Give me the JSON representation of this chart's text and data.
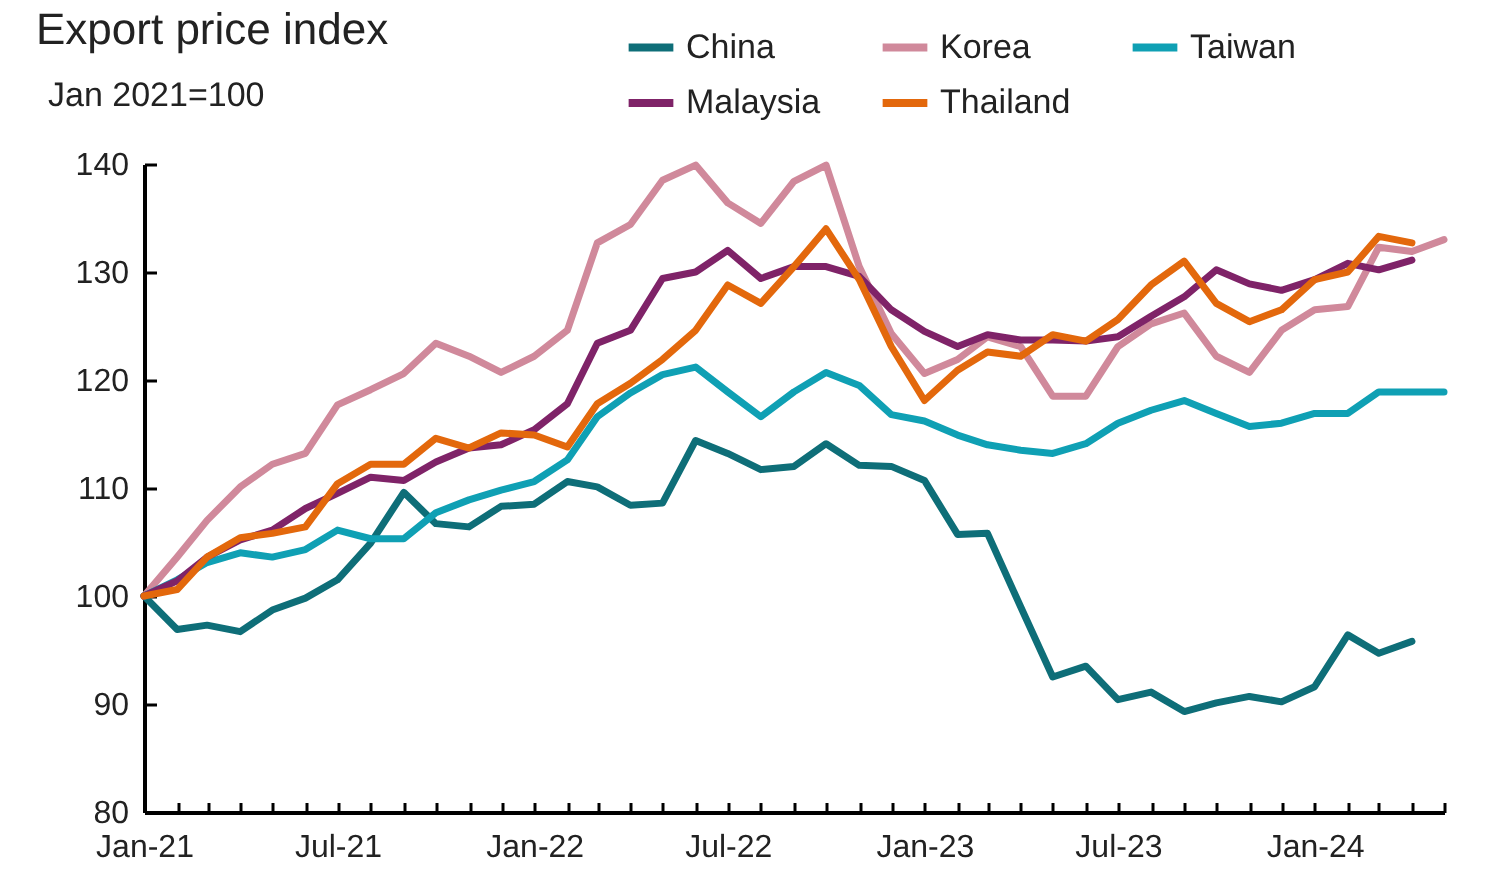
{
  "chart_data": {
    "type": "line",
    "title": "Export price index",
    "subtitle": "Jan 2021=100",
    "x": [
      "2021-01",
      "2021-02",
      "2021-03",
      "2021-04",
      "2021-05",
      "2021-06",
      "2021-07",
      "2021-08",
      "2021-09",
      "2021-10",
      "2021-11",
      "2021-12",
      "2022-01",
      "2022-02",
      "2022-03",
      "2022-04",
      "2022-05",
      "2022-06",
      "2022-07",
      "2022-08",
      "2022-09",
      "2022-10",
      "2022-11",
      "2022-12",
      "2023-01",
      "2023-02",
      "2023-03",
      "2023-04",
      "2023-05",
      "2023-06",
      "2023-07",
      "2023-08",
      "2023-09",
      "2023-10",
      "2023-11",
      "2023-12",
      "2024-01",
      "2024-02",
      "2024-03",
      "2024-04",
      "2024-05"
    ],
    "series": [
      {
        "name": "China",
        "color": "#0e6e78",
        "values": [
          100,
          96.9,
          97.3,
          96.7,
          98.7,
          99.8,
          101.5,
          104.9,
          109.6,
          106.7,
          106.4,
          108.3,
          108.5,
          110.6,
          110.1,
          108.4,
          108.6,
          114.4,
          113.2,
          111.7,
          112,
          114.1,
          112.1,
          112,
          110.7,
          105.7,
          105.8,
          99,
          92.5,
          93.5,
          90.4,
          91.1,
          89.3,
          90.1,
          90.7,
          90.2,
          91.6,
          96.4,
          94.7,
          95.8,
          null
        ]
      },
      {
        "name": "Korea",
        "color": "#d0899b",
        "values": [
          100,
          103.6,
          107,
          110.1,
          112.2,
          113.2,
          117.7,
          119.1,
          120.6,
          123.4,
          122.2,
          120.7,
          122.2,
          124.6,
          132.7,
          134.4,
          138.5,
          139.9,
          136.4,
          134.5,
          138.4,
          139.9,
          130.5,
          124.3,
          120.6,
          121.9,
          124,
          123.1,
          118.5,
          118.5,
          123.1,
          125.2,
          126.2,
          122.2,
          120.7,
          124.6,
          126.5,
          126.8,
          132.3,
          131.9,
          133
        ]
      },
      {
        "name": "Taiwan",
        "color": "#0fa0b4",
        "values": [
          100,
          101.5,
          103.1,
          104,
          103.6,
          104.3,
          106.1,
          105.3,
          105.3,
          107.7,
          108.9,
          109.8,
          110.6,
          112.6,
          116.6,
          118.8,
          120.5,
          121.2,
          118.9,
          116.6,
          118.9,
          120.7,
          119.5,
          116.8,
          116.2,
          114.9,
          114,
          113.5,
          113.2,
          114.1,
          116,
          117.2,
          118.1,
          116.9,
          115.7,
          116,
          116.9,
          116.9,
          118.9,
          118.9,
          118.9
        ]
      },
      {
        "name": "Malaysia",
        "color": "#7f2368",
        "values": [
          100,
          101.4,
          103.6,
          105.2,
          106.1,
          108.1,
          109.5,
          111,
          110.7,
          112.4,
          113.7,
          114,
          115.4,
          117.8,
          123.4,
          124.6,
          129.4,
          130,
          132,
          129.4,
          130.5,
          130.5,
          129.6,
          126.5,
          124.5,
          123.1,
          124.2,
          123.7,
          123.7,
          123.6,
          124,
          125.9,
          127.7,
          130.2,
          128.9,
          128.3,
          129.3,
          130.8,
          130.2,
          131.1,
          null
        ]
      },
      {
        "name": "Thailand",
        "color": "#e3680c",
        "values": [
          100,
          100.6,
          103.6,
          105.4,
          105.8,
          106.4,
          110.4,
          112.2,
          112.2,
          114.6,
          113.7,
          115.1,
          114.9,
          113.8,
          117.8,
          119.7,
          121.9,
          124.6,
          128.8,
          127.1,
          130.5,
          134,
          129.3,
          123.1,
          118.1,
          120.9,
          122.6,
          122.2,
          124.2,
          123.6,
          125.6,
          128.8,
          131,
          127.1,
          125.4,
          126.5,
          129.3,
          130,
          133.3,
          132.7,
          null
        ]
      }
    ],
    "xlim": [
      "2021-01",
      "2024-05"
    ],
    "xticks": [
      {
        "value": "2021-01",
        "label": "Jan-21"
      },
      {
        "value": "2021-02",
        "label": null
      },
      {
        "value": "2021-03",
        "label": null
      },
      {
        "value": "2021-04",
        "label": null
      },
      {
        "value": "2021-05",
        "label": null
      },
      {
        "value": "2021-06",
        "label": null
      },
      {
        "value": "2021-07",
        "label": "Jul-21"
      },
      {
        "value": "2021-08",
        "label": null
      },
      {
        "value": "2021-09",
        "label": null
      },
      {
        "value": "2021-10",
        "label": null
      },
      {
        "value": "2021-11",
        "label": null
      },
      {
        "value": "2021-12",
        "label": null
      },
      {
        "value": "2022-01",
        "label": "Jan-22"
      },
      {
        "value": "2022-02",
        "label": null
      },
      {
        "value": "2022-03",
        "label": null
      },
      {
        "value": "2022-04",
        "label": null
      },
      {
        "value": "2022-05",
        "label": null
      },
      {
        "value": "2022-06",
        "label": null
      },
      {
        "value": "2022-07",
        "label": "Jul-22"
      },
      {
        "value": "2022-08",
        "label": null
      },
      {
        "value": "2022-09",
        "label": null
      },
      {
        "value": "2022-10",
        "label": null
      },
      {
        "value": "2022-11",
        "label": null
      },
      {
        "value": "2022-12",
        "label": null
      },
      {
        "value": "2023-01",
        "label": "Jan-23"
      },
      {
        "value": "2023-02",
        "label": null
      },
      {
        "value": "2023-03",
        "label": null
      },
      {
        "value": "2023-04",
        "label": null
      },
      {
        "value": "2023-05",
        "label": null
      },
      {
        "value": "2023-06",
        "label": null
      },
      {
        "value": "2023-07",
        "label": "Jul-23"
      },
      {
        "value": "2023-08",
        "label": null
      },
      {
        "value": "2023-09",
        "label": null
      },
      {
        "value": "2023-10",
        "label": null
      },
      {
        "value": "2023-11",
        "label": null
      },
      {
        "value": "2023-12",
        "label": null
      },
      {
        "value": "2024-01",
        "label": "Jan-24"
      },
      {
        "value": "2024-02",
        "label": null
      },
      {
        "value": "2024-03",
        "label": null
      },
      {
        "value": "2024-04",
        "label": null
      },
      {
        "value": "2024-05",
        "label": null
      }
    ],
    "ylim": [
      80,
      140
    ],
    "yticks": [
      80,
      90,
      100,
      110,
      120,
      130,
      140
    ],
    "legend": "top right",
    "line_style": "solid"
  }
}
